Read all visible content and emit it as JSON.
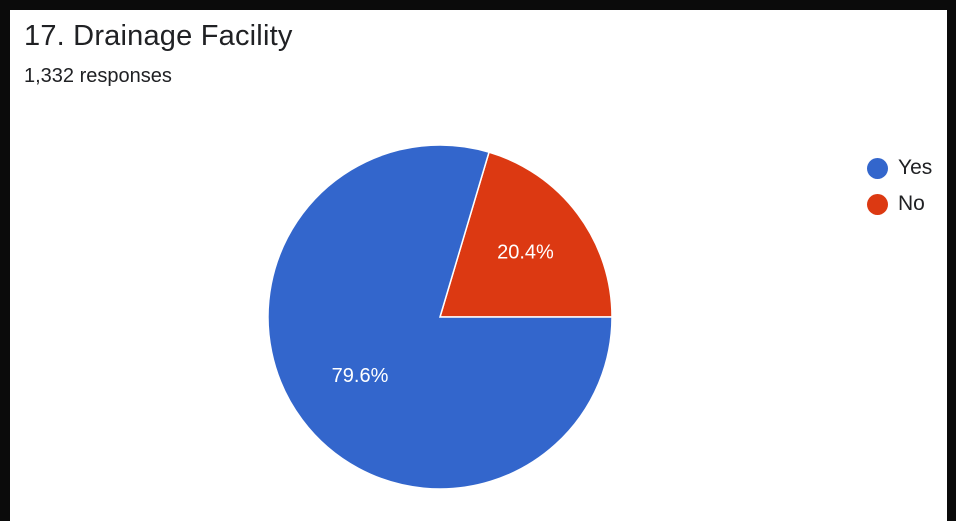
{
  "header": {
    "title": "17. Drainage Facility",
    "responses": "1,332 responses"
  },
  "chart_data": {
    "type": "pie",
    "title": "17. Drainage Facility",
    "slices": [
      {
        "label": "Yes",
        "value": 79.6,
        "display": "79.6%",
        "color": "#3366cc"
      },
      {
        "label": "No",
        "value": 20.4,
        "display": "20.4%",
        "color": "#dc3912"
      }
    ],
    "legend_position": "right"
  }
}
